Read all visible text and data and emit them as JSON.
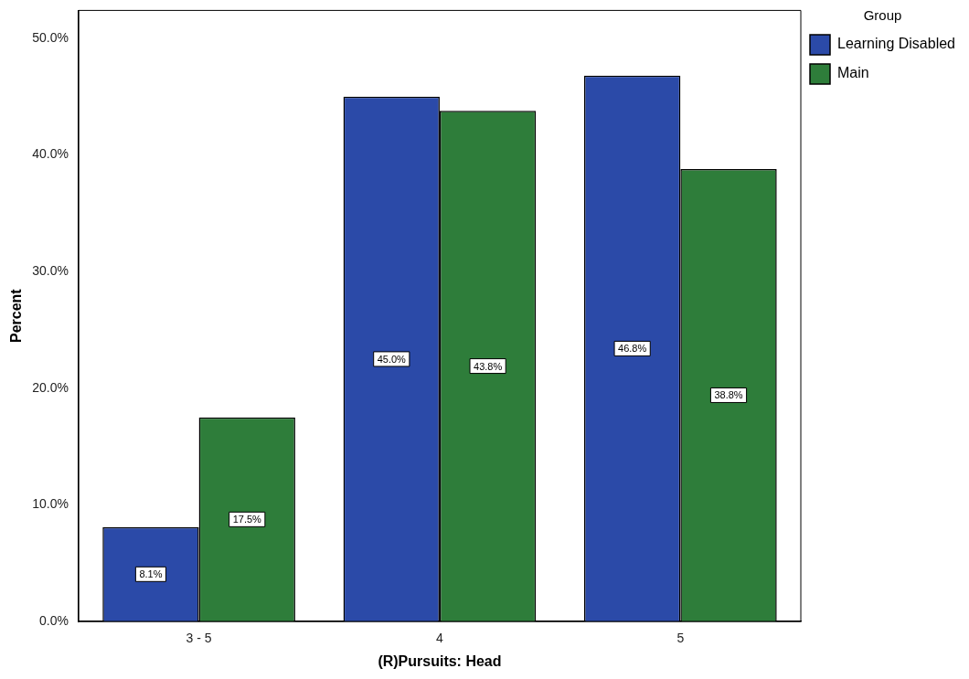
{
  "chart_data": {
    "type": "bar",
    "xlabel": "(R)Pursuits: Head",
    "ylabel": "Percent",
    "legend_title": "Group",
    "legend": "top right",
    "grid": false,
    "categories": [
      "3 - 5",
      "4",
      "5"
    ],
    "series": [
      {
        "name": "Learning Disabled",
        "color": "#2b4aa8",
        "values": [
          8.1,
          45.0,
          46.8
        ],
        "value_labels": [
          "8.1%",
          "45.0%",
          "46.8%"
        ]
      },
      {
        "name": "Main",
        "color": "#2e7d3a",
        "values": [
          17.5,
          43.8,
          38.8
        ],
        "value_labels": [
          "17.5%",
          "43.8%",
          "38.8%"
        ]
      }
    ],
    "ylim": [
      0,
      52.4
    ],
    "yticks": [
      {
        "value": 0,
        "label": "0.0%"
      },
      {
        "value": 10,
        "label": "10.0%"
      },
      {
        "value": 20,
        "label": "20.0%"
      },
      {
        "value": 30,
        "label": "30.0%"
      },
      {
        "value": 40,
        "label": "40.0%"
      },
      {
        "value": 50,
        "label": "50.0%"
      }
    ]
  }
}
